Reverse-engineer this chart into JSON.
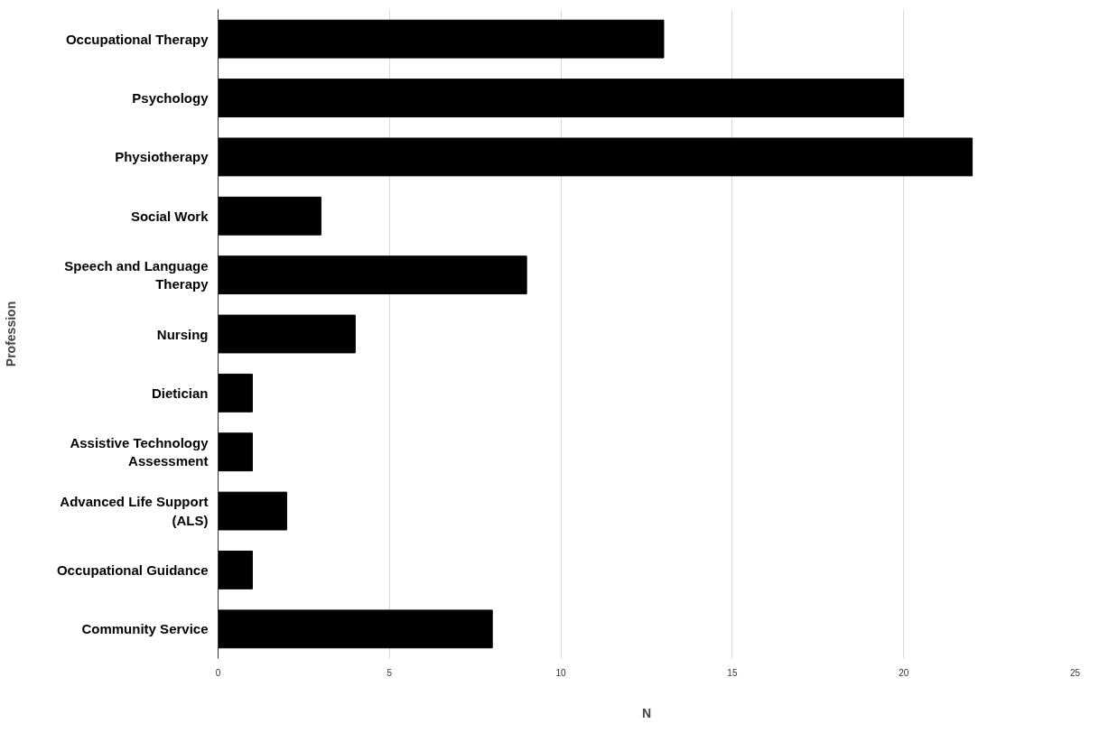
{
  "chart_data": {
    "type": "bar",
    "orientation": "horizontal",
    "xlabel": "N",
    "ylabel": "Profession",
    "categories": [
      "Occupational Therapy",
      "Psychology",
      "Physiotherapy",
      "Social Work",
      "Speech and Language Therapy",
      "Nursing",
      "Dietician",
      "Assistive Technology Assessment",
      "Advanced Life Support (ALS)",
      "Occupational Guidance",
      "Community Service"
    ],
    "values": [
      13,
      20,
      22,
      3,
      9,
      4,
      1,
      1,
      2,
      1,
      8
    ],
    "color": "#000000",
    "xlim": [
      0,
      25
    ],
    "xticks": [
      0,
      5,
      10,
      15,
      20,
      25
    ],
    "grid": "x"
  }
}
